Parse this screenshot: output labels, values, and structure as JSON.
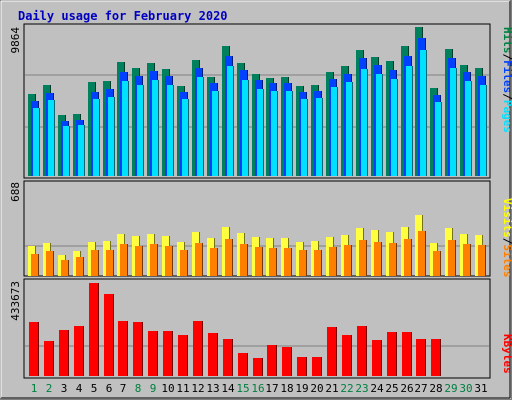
{
  "chart_data": {
    "type": "bar",
    "title": "Daily usage for February 2020",
    "categories": [
      "1",
      "2",
      "3",
      "4",
      "5",
      "6",
      "7",
      "8",
      "9",
      "10",
      "11",
      "12",
      "13",
      "14",
      "15",
      "16",
      "17",
      "18",
      "19",
      "20",
      "21",
      "22",
      "23",
      "24",
      "25",
      "26",
      "27",
      "28",
      "29",
      "30",
      "31"
    ],
    "weekend_days": [
      "1",
      "2",
      "8",
      "9",
      "15",
      "16",
      "22",
      "23",
      "29",
      "30"
    ],
    "panels": [
      {
        "ymax_label": "9864",
        "ymax": 9864,
        "legend": [
          {
            "text": "Hits",
            "color": "#008040"
          },
          {
            "text": "/",
            "color": "#000000"
          },
          {
            "text": "Files",
            "color": "#0040ff"
          },
          {
            "text": "/",
            "color": "#000000"
          },
          {
            "text": "Pages",
            "color": "#00e0ff"
          }
        ],
        "series": [
          {
            "name": "Hits",
            "color": "#00805c",
            "values": [
              5430,
              6040,
              4020,
              4100,
              6210,
              6270,
              7550,
              7150,
              7480,
              7110,
              5980,
              7700,
              6570,
              8580,
              7460,
              6770,
              6520,
              6540,
              5950,
              6020,
              6890,
              7270,
              8320,
              7900,
              7600,
              8580,
              9864,
              5810,
              8400,
              7350,
              7120
            ]
          },
          {
            "name": "Files",
            "color": "#0040ff",
            "values": [
              4940,
              5500,
              3630,
              3690,
              5590,
              5770,
              6900,
              6590,
              6930,
              6590,
              5570,
              7180,
              6160,
              7940,
              6990,
              6330,
              6130,
              6130,
              5580,
              5630,
              6440,
              6780,
              7780,
              7360,
              7010,
              7950,
              9150,
              5360,
              7840,
              6860,
              6590
            ]
          },
          {
            "name": "Pages",
            "color": "#00e0ff",
            "values": [
              4470,
              5020,
              3300,
              3360,
              5090,
              5260,
              6300,
              6020,
              6330,
              6020,
              5090,
              6560,
              5630,
              7250,
              6380,
              5780,
              5600,
              5600,
              5100,
              5140,
              5880,
              6200,
              7110,
              6720,
              6400,
              7260,
              8370,
              4900,
              7160,
              6270,
              6020
            ]
          }
        ]
      },
      {
        "ymax_label": "688",
        "ymax": 688,
        "legend": [
          {
            "text": "Visits",
            "color": "#ffff00"
          },
          {
            "text": "/",
            "color": "#000000"
          },
          {
            "text": "Sites",
            "color": "#ff8000"
          }
        ],
        "series": [
          {
            "name": "Visits",
            "color": "#ffff40",
            "values": [
              222,
              249,
              158,
              186,
              256,
              264,
              315,
              302,
              315,
              302,
              256,
              326,
              281,
              366,
              320,
              291,
              281,
              281,
              256,
              263,
              294,
              310,
              360,
              341,
              328,
              367,
              454,
              248,
              356,
              317,
              308
            ]
          },
          {
            "name": "Sites",
            "color": "#ff8000",
            "values": [
              166,
              187,
              118,
              139,
              192,
              198,
              236,
              226,
              236,
              226,
              192,
              244,
              210,
              274,
              240,
              218,
              210,
              210,
              192,
              197,
              220,
              232,
              270,
              255,
              246,
              275,
              340,
              186,
              267,
              237,
              231
            ]
          }
        ]
      },
      {
        "ymax_label": "433673",
        "ymax": 433673,
        "legend": [
          {
            "text": "KBytes",
            "color": "#ff0000"
          }
        ],
        "series": [
          {
            "name": "KBytes",
            "color": "#ff0000",
            "values": [
              251490,
              163910,
              213330,
              232410,
              433670,
              380200,
              255630,
              252740,
              208830,
              209360,
              191000,
              255630,
              200180,
              172860,
              106850,
              85280,
              145570,
              134950,
              88930,
              87800,
              230120,
              188880,
              233900,
              168960,
              206530,
              206530,
              173390,
              170330,
              0,
              0,
              0
            ]
          }
        ]
      }
    ]
  }
}
